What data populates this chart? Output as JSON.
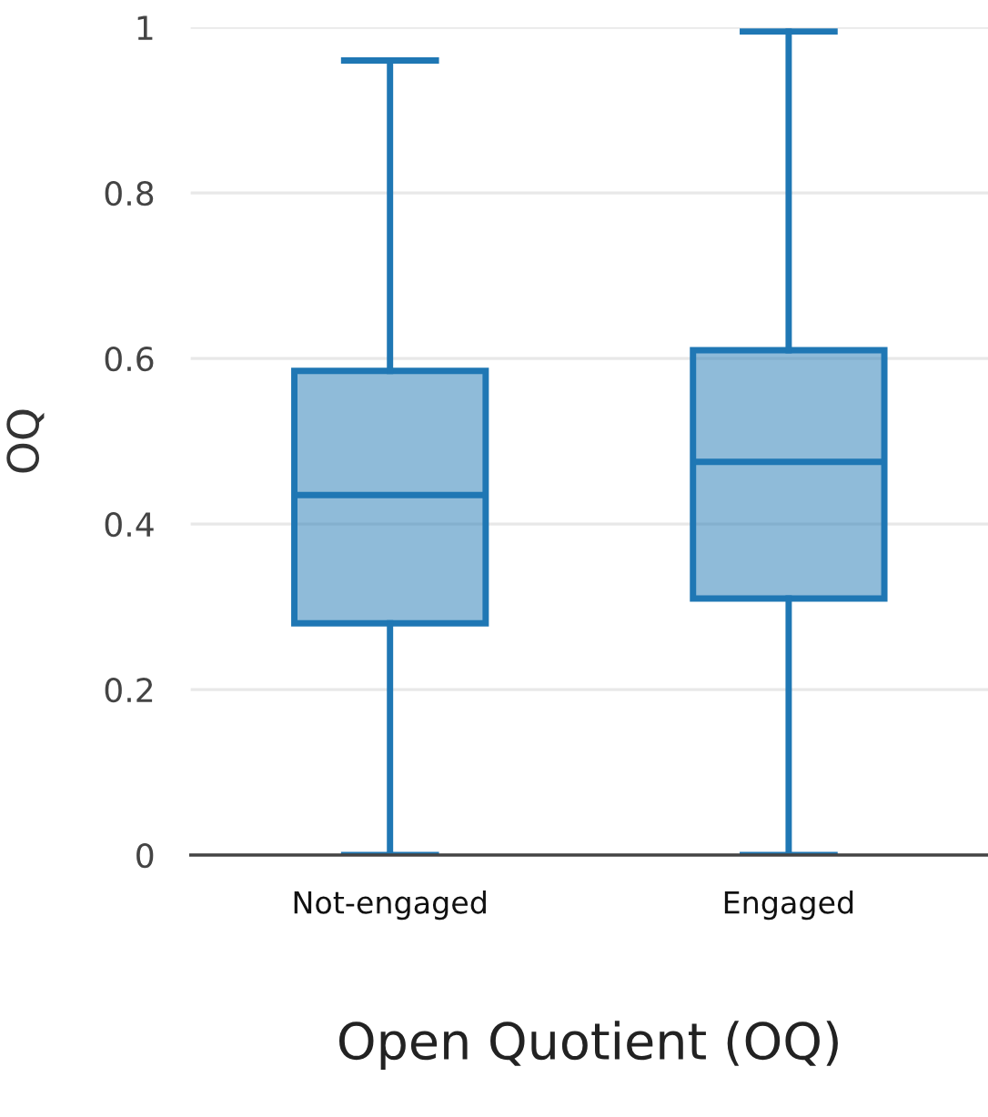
{
  "chart_data": {
    "type": "box",
    "xlabel": "Open Quotient (OQ)",
    "ylabel": "OQ",
    "categories": [
      "Not-engaged",
      "Engaged"
    ],
    "series": [
      {
        "color": "#1f77b4",
        "boxes": [
          {
            "low": 0,
            "q1": 0.28,
            "median": 0.435,
            "q3": 0.585,
            "high": 0.96
          },
          {
            "low": 0,
            "q1": 0.31,
            "median": 0.475,
            "q3": 0.61,
            "high": 0.995
          }
        ]
      }
    ],
    "ylim": [
      0,
      1
    ],
    "yticks": [
      0,
      0.2,
      0.4,
      0.6,
      0.8,
      1
    ],
    "grid": "y",
    "legend": false
  }
}
